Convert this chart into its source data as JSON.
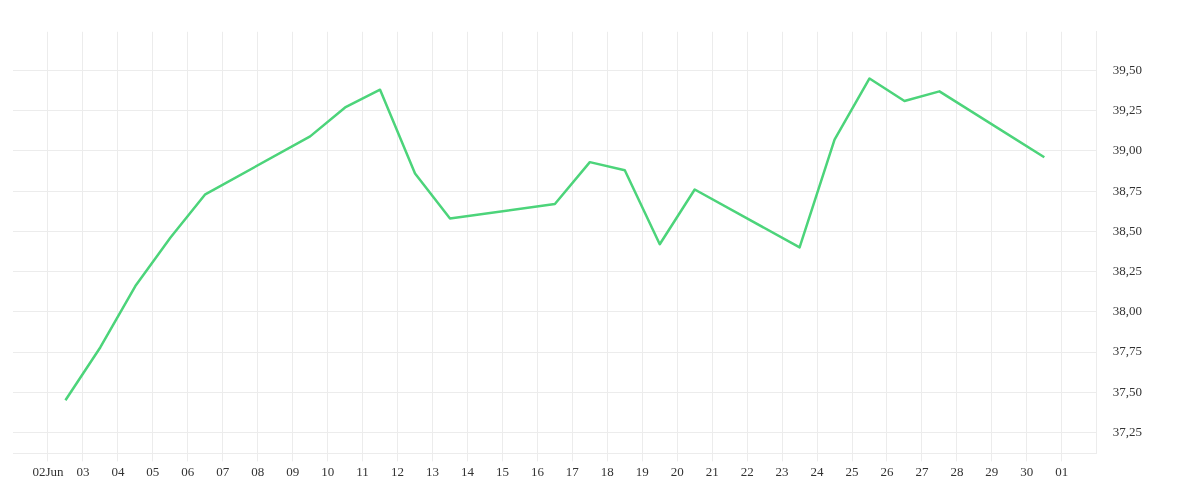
{
  "chart_data": {
    "type": "line",
    "x": [
      "--06-02T12:00",
      "--06-03T12:00",
      "--06-04T12:00",
      "--06-05T12:00",
      "--06-06T12:00",
      "--06-09T12:00",
      "--06-10T12:00",
      "--06-11T12:00",
      "--06-12T12:00",
      "--06-13T12:00",
      "--06-16T12:00",
      "--06-17T12:00",
      "--06-18T12:00",
      "--06-19T12:00",
      "--06-20T12:00",
      "--06-23T12:00",
      "--06-24T12:00",
      "--06-25T12:00",
      "--06-26T12:00",
      "--06-27T12:00",
      "--06-30T12:00"
    ],
    "series": [
      {
        "color": "#4cd47a",
        "values": [
          37.45,
          37.78,
          38.16,
          38.46,
          38.73,
          39.09,
          39.27,
          39.38,
          38.86,
          38.58,
          38.67,
          38.93,
          38.88,
          38.42,
          38.76,
          38.4,
          39.07,
          39.45,
          39.31,
          39.37,
          38.96
        ]
      }
    ],
    "xlim": [
      "--06-01",
      "--07-02"
    ],
    "xticks": [
      {
        "value": "--06-02",
        "label": "02Jun"
      },
      {
        "value": "--06-03",
        "label": "03"
      },
      {
        "value": "--06-04",
        "label": "04"
      },
      {
        "value": "--06-05",
        "label": "05"
      },
      {
        "value": "--06-06",
        "label": "06"
      },
      {
        "value": "--06-07",
        "label": "07"
      },
      {
        "value": "--06-08",
        "label": "08"
      },
      {
        "value": "--06-09",
        "label": "09"
      },
      {
        "value": "--06-10",
        "label": "10"
      },
      {
        "value": "--06-11",
        "label": "11"
      },
      {
        "value": "--06-12",
        "label": "12"
      },
      {
        "value": "--06-13",
        "label": "13"
      },
      {
        "value": "--06-14",
        "label": "14"
      },
      {
        "value": "--06-15",
        "label": "15"
      },
      {
        "value": "--06-16",
        "label": "16"
      },
      {
        "value": "--06-17",
        "label": "17"
      },
      {
        "value": "--06-18",
        "label": "18"
      },
      {
        "value": "--06-19",
        "label": "19"
      },
      {
        "value": "--06-20",
        "label": "20"
      },
      {
        "value": "--06-21",
        "label": "21"
      },
      {
        "value": "--06-22",
        "label": "22"
      },
      {
        "value": "--06-23",
        "label": "23"
      },
      {
        "value": "--06-24",
        "label": "24"
      },
      {
        "value": "--06-25",
        "label": "25"
      },
      {
        "value": "--06-26",
        "label": "26"
      },
      {
        "value": "--06-27",
        "label": "27"
      },
      {
        "value": "--06-28",
        "label": "28"
      },
      {
        "value": "--06-29",
        "label": "29"
      },
      {
        "value": "--06-30",
        "label": "30"
      },
      {
        "value": "--07-01",
        "label": "01"
      }
    ],
    "ylim": [
      37.12,
      39.74
    ],
    "yticks": [
      {
        "value": 37.25,
        "label": "37,25"
      },
      {
        "value": 37.5,
        "label": "37,50"
      },
      {
        "value": 37.75,
        "label": "37,75"
      },
      {
        "value": 38,
        "label": "38,00"
      },
      {
        "value": 38.25,
        "label": "38,25"
      },
      {
        "value": 38.5,
        "label": "38,50"
      },
      {
        "value": 38.75,
        "label": "38,75"
      },
      {
        "value": 39,
        "label": "39,00"
      },
      {
        "value": 39.25,
        "label": "39,25"
      },
      {
        "value": 39.5,
        "label": "39,50"
      }
    ],
    "grid": true,
    "legend": false,
    "marker": "none",
    "line_style": "solid"
  }
}
